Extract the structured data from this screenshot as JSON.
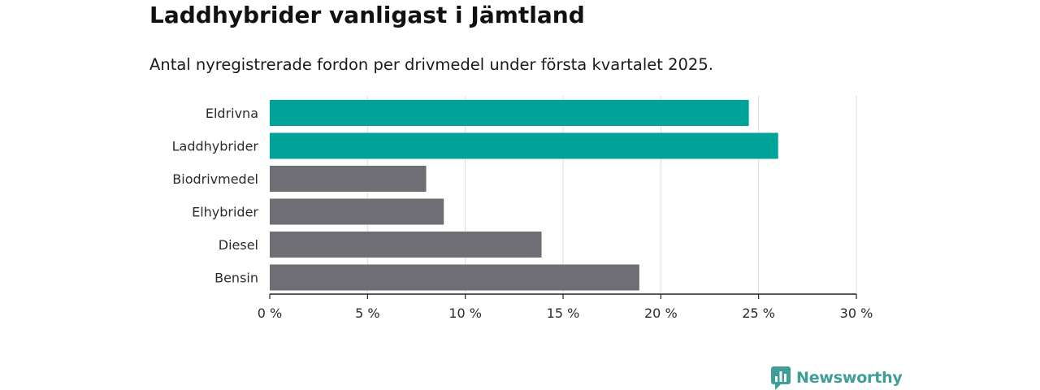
{
  "header": {
    "title": "Laddhybrider vanligast i Jämtland",
    "subtitle": "Antal nyregistrerade fordon per drivmedel under första kvartalet 2025."
  },
  "brand": {
    "name": "Newsworthy",
    "color": "#3f9e95"
  },
  "colors": {
    "highlight": "#00a398",
    "default": "#6e6e74",
    "grid": "#dddddd",
    "axis": "#222222"
  },
  "chart_data": {
    "type": "bar",
    "orientation": "horizontal",
    "title": "Laddhybrider vanligast i Jämtland",
    "subtitle": "Antal nyregistrerade fordon per drivmedel under första kvartalet 2025.",
    "categories": [
      "Eldrivna",
      "Laddhybrider",
      "Biodrivmedel",
      "Elhybrider",
      "Diesel",
      "Bensin"
    ],
    "values": [
      24.5,
      26.0,
      8.0,
      8.9,
      13.9,
      18.9
    ],
    "highlighted": [
      true,
      true,
      false,
      false,
      false,
      false
    ],
    "xlim": [
      0,
      30
    ],
    "ticks": [
      0,
      5,
      10,
      15,
      20,
      25,
      30
    ],
    "tick_labels": [
      "0 %",
      "5 %",
      "10 %",
      "15 %",
      "20 %",
      "25 %",
      "30 %"
    ],
    "xlabel": "",
    "ylabel": "",
    "grid": true
  }
}
